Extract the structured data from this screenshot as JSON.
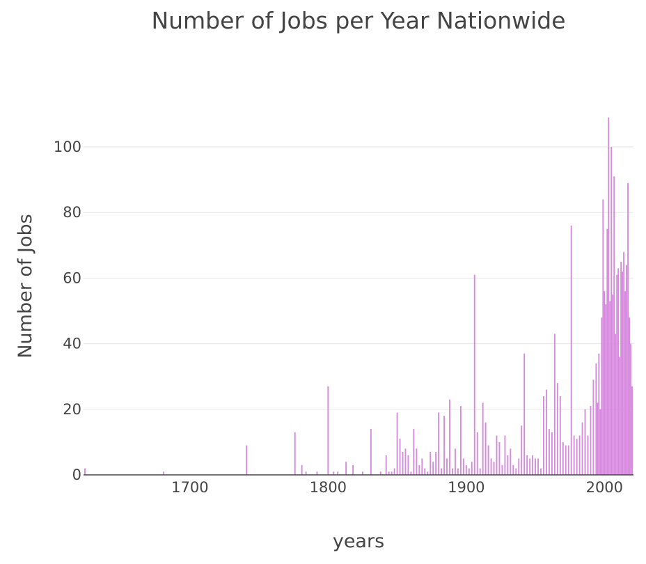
{
  "chart_data": {
    "type": "bar",
    "title": "Number of Jobs per Year Nationwide",
    "xlabel": "years",
    "ylabel": "Number of Jobs",
    "xlim": [
      1623,
      2021
    ],
    "ylim": [
      0,
      115
    ],
    "xticks": [
      1700,
      1800,
      1900,
      2000
    ],
    "yticks": [
      0,
      20,
      40,
      60,
      80,
      100
    ],
    "grid": true,
    "bar_color": "#d48bdb",
    "axis_color": "#444444",
    "grid_color": "#e6e6e6",
    "x": [
      1624,
      1681,
      1741,
      1776,
      1781,
      1784,
      1792,
      1800,
      1804,
      1807,
      1813,
      1818,
      1825,
      1831,
      1838,
      1842,
      1844,
      1846,
      1848,
      1850,
      1852,
      1854,
      1856,
      1858,
      1860,
      1862,
      1864,
      1866,
      1868,
      1870,
      1872,
      1874,
      1876,
      1878,
      1880,
      1882,
      1884,
      1886,
      1888,
      1890,
      1892,
      1894,
      1896,
      1898,
      1900,
      1902,
      1904,
      1906,
      1908,
      1910,
      1912,
      1914,
      1916,
      1918,
      1920,
      1922,
      1924,
      1926,
      1928,
      1930,
      1932,
      1934,
      1936,
      1938,
      1940,
      1942,
      1944,
      1946,
      1948,
      1950,
      1952,
      1954,
      1956,
      1958,
      1960,
      1962,
      1964,
      1966,
      1968,
      1970,
      1972,
      1974,
      1976,
      1978,
      1980,
      1982,
      1984,
      1986,
      1988,
      1990,
      1992,
      1994,
      1995,
      1996,
      1997,
      1998,
      1999,
      2000,
      2001,
      2002,
      2003,
      2004,
      2005,
      2006,
      2007,
      2008,
      2009,
      2010,
      2011,
      2012,
      2013,
      2014,
      2015,
      2016,
      2017,
      2018,
      2019,
      2020
    ],
    "values": [
      2,
      1,
      9,
      13,
      3,
      1,
      1,
      27,
      1,
      1,
      4,
      3,
      1,
      14,
      1,
      6,
      1,
      1,
      2,
      19,
      11,
      7,
      8,
      6,
      1,
      14,
      8,
      3,
      5,
      2,
      1,
      7,
      4,
      7,
      19,
      2,
      18,
      5,
      23,
      2,
      8,
      2,
      21,
      5,
      3,
      2,
      4,
      61,
      13,
      2,
      22,
      16,
      9,
      5,
      4,
      12,
      10,
      3,
      12,
      6,
      8,
      3,
      2,
      5,
      15,
      37,
      6,
      5,
      6,
      5,
      5,
      2,
      24,
      26,
      14,
      13,
      43,
      28,
      24,
      10,
      9,
      9,
      76,
      12,
      11,
      12,
      16,
      20,
      12,
      21,
      29,
      34,
      22,
      37,
      20,
      48,
      84,
      56,
      52,
      75,
      109,
      53,
      100,
      55,
      91,
      43,
      61,
      63,
      36,
      65,
      62,
      68,
      56,
      64,
      89,
      48,
      40,
      27
    ]
  }
}
